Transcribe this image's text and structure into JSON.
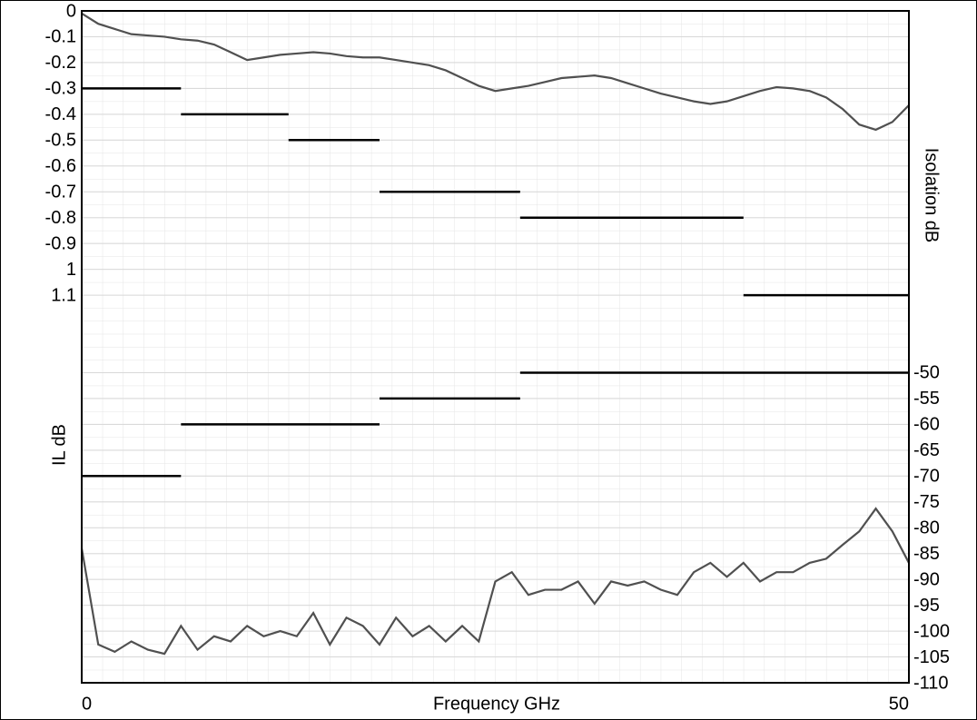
{
  "chart_data": {
    "type": "line",
    "xlabel": "Frequency GHz",
    "ylabel": "IL dB",
    "y2label": "Isolation dB",
    "xlim": [
      0,
      50
    ],
    "xticks": [
      0,
      50
    ],
    "ylim": [
      -2.6,
      0
    ],
    "yticks": [
      0,
      -0.1,
      -0.2,
      -0.3,
      -0.4,
      -0.5,
      -0.6,
      -0.7,
      -0.8,
      -0.9,
      {
        "value": -1,
        "label": "1"
      },
      {
        "value": -1.1,
        "label": "1.1"
      }
    ],
    "y2lim": [
      -110,
      20
    ],
    "y2ticks": [
      -50,
      -55,
      -60,
      -65,
      -70,
      -75,
      -80,
      -85,
      -90,
      -95,
      -100,
      -105,
      -110
    ],
    "grid": true,
    "x": [
      0,
      1,
      2,
      3,
      4,
      5,
      6,
      7,
      8,
      9,
      10,
      11,
      12,
      13,
      14,
      15,
      16,
      17,
      18,
      19,
      20,
      21,
      22,
      23,
      24,
      25,
      26,
      27,
      28,
      29,
      30,
      31,
      32,
      33,
      34,
      35,
      36,
      37,
      38,
      39,
      40,
      41,
      42,
      43,
      44,
      45,
      46,
      47,
      48,
      49,
      50
    ],
    "series": [
      {
        "color": "#505050",
        "values": [
          -0.01,
          -0.05,
          -0.07,
          -0.09,
          -0.095,
          -0.1,
          -0.11,
          -0.115,
          -0.13,
          -0.16,
          -0.19,
          -0.18,
          -0.17,
          -0.165,
          -0.16,
          -0.165,
          -0.175,
          -0.18,
          -0.18,
          -0.19,
          -0.2,
          -0.21,
          -0.23,
          -0.26,
          -0.29,
          -0.31,
          -0.3,
          -0.29,
          -0.275,
          -0.26,
          -0.255,
          -0.25,
          -0.26,
          -0.28,
          -0.3,
          -0.32,
          -0.335,
          -0.35,
          -0.36,
          -0.35,
          -0.33,
          -0.31,
          -0.295,
          -0.3,
          -0.31,
          -0.335,
          -0.38,
          -0.44,
          -0.46,
          -0.43,
          -0.365
        ]
      },
      {
        "color": "#505050",
        "axis": "y2",
        "values": [
          -84,
          -102.6,
          -104,
          -102,
          -103.6,
          -104.4,
          -99,
          -103.6,
          -101,
          -102,
          -99,
          -101,
          -100,
          -101,
          -96.5,
          -102.6,
          -97.4,
          -99,
          -102.6,
          -97.4,
          -101,
          -99,
          -102,
          -99,
          -102,
          -90.4,
          -88.6,
          -93,
          -92,
          -92,
          -90.4,
          -94.7,
          -90.4,
          -91.2,
          -90.4,
          -92,
          -93,
          -88.6,
          -86.8,
          -89.5,
          -86.8,
          -90.4,
          -88.6,
          -88.6,
          -86.8,
          -86,
          -83.3,
          -80.7,
          -76.3,
          -80.7,
          -86.8
        ]
      }
    ],
    "limits": [
      {
        "color": "#000000",
        "bins": [
          0,
          6,
          12.5,
          18,
          26.5,
          40,
          50
        ],
        "values": [
          -0.3,
          -0.4,
          -0.5,
          -0.7,
          -0.8,
          -1.1
        ]
      },
      {
        "color": "#000000",
        "axis": "y2",
        "bins": [
          0,
          6,
          18,
          26.5,
          50
        ],
        "values": [
          -70,
          -60,
          -55,
          -50
        ]
      }
    ]
  }
}
